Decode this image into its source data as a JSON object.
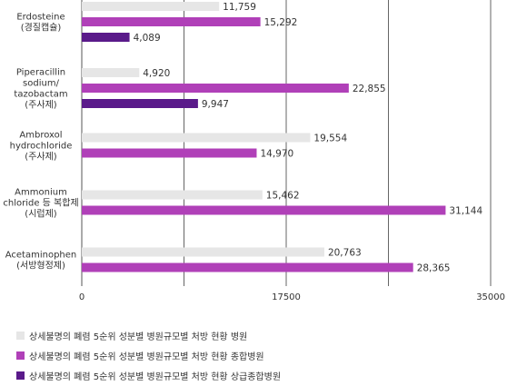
{
  "chart_data": {
    "type": "bar",
    "orientation": "horizontal",
    "categories": [
      [
        "Erdosteine",
        "(경질캡슐)"
      ],
      [
        "Piperacillin",
        "sodium/",
        "tazobactam",
        "(주사제)"
      ],
      [
        "Ambroxol",
        "hydrochloride",
        "(주사제)"
      ],
      [
        "Ammonium",
        "chloride 등 복합제",
        "(시럽제)"
      ],
      [
        "Acetaminophen",
        "(서방형정제)"
      ]
    ],
    "series": [
      {
        "name": "상세불명의 폐렴 5순위 성분별 병원규모별 처방 현황 병원",
        "color": "#e6e6e6",
        "values": [
          11759,
          4920,
          19554,
          15462,
          20763
        ],
        "labels": [
          "11,759",
          "4,920",
          "19,554",
          "15,462",
          "20,763"
        ]
      },
      {
        "name": "상세불명의 폐렴 5순위 성분별 병원규모별 처방 현황 종합병원",
        "color": "#b040b8",
        "values": [
          15292,
          22855,
          14970,
          31144,
          28365
        ],
        "labels": [
          "15,292",
          "22,855",
          "14,970",
          "31,144",
          "28,365"
        ]
      },
      {
        "name": "상세불명의 폐렴 5순위 성분별 병원규모별 처방 현황 상급종합병원",
        "color": "#5a1a8a",
        "values": [
          4089,
          9947,
          null,
          null,
          null
        ],
        "labels": [
          "4,089",
          "9,947",
          "",
          "",
          ""
        ]
      }
    ],
    "xlim": [
      0,
      35000
    ],
    "xticks": [
      0,
      17500,
      35000
    ],
    "xtick_labels": [
      "0",
      "17500",
      "35000"
    ],
    "gridlines": [
      8750,
      17500,
      26250,
      35000
    ],
    "legend_position": "bottom"
  }
}
